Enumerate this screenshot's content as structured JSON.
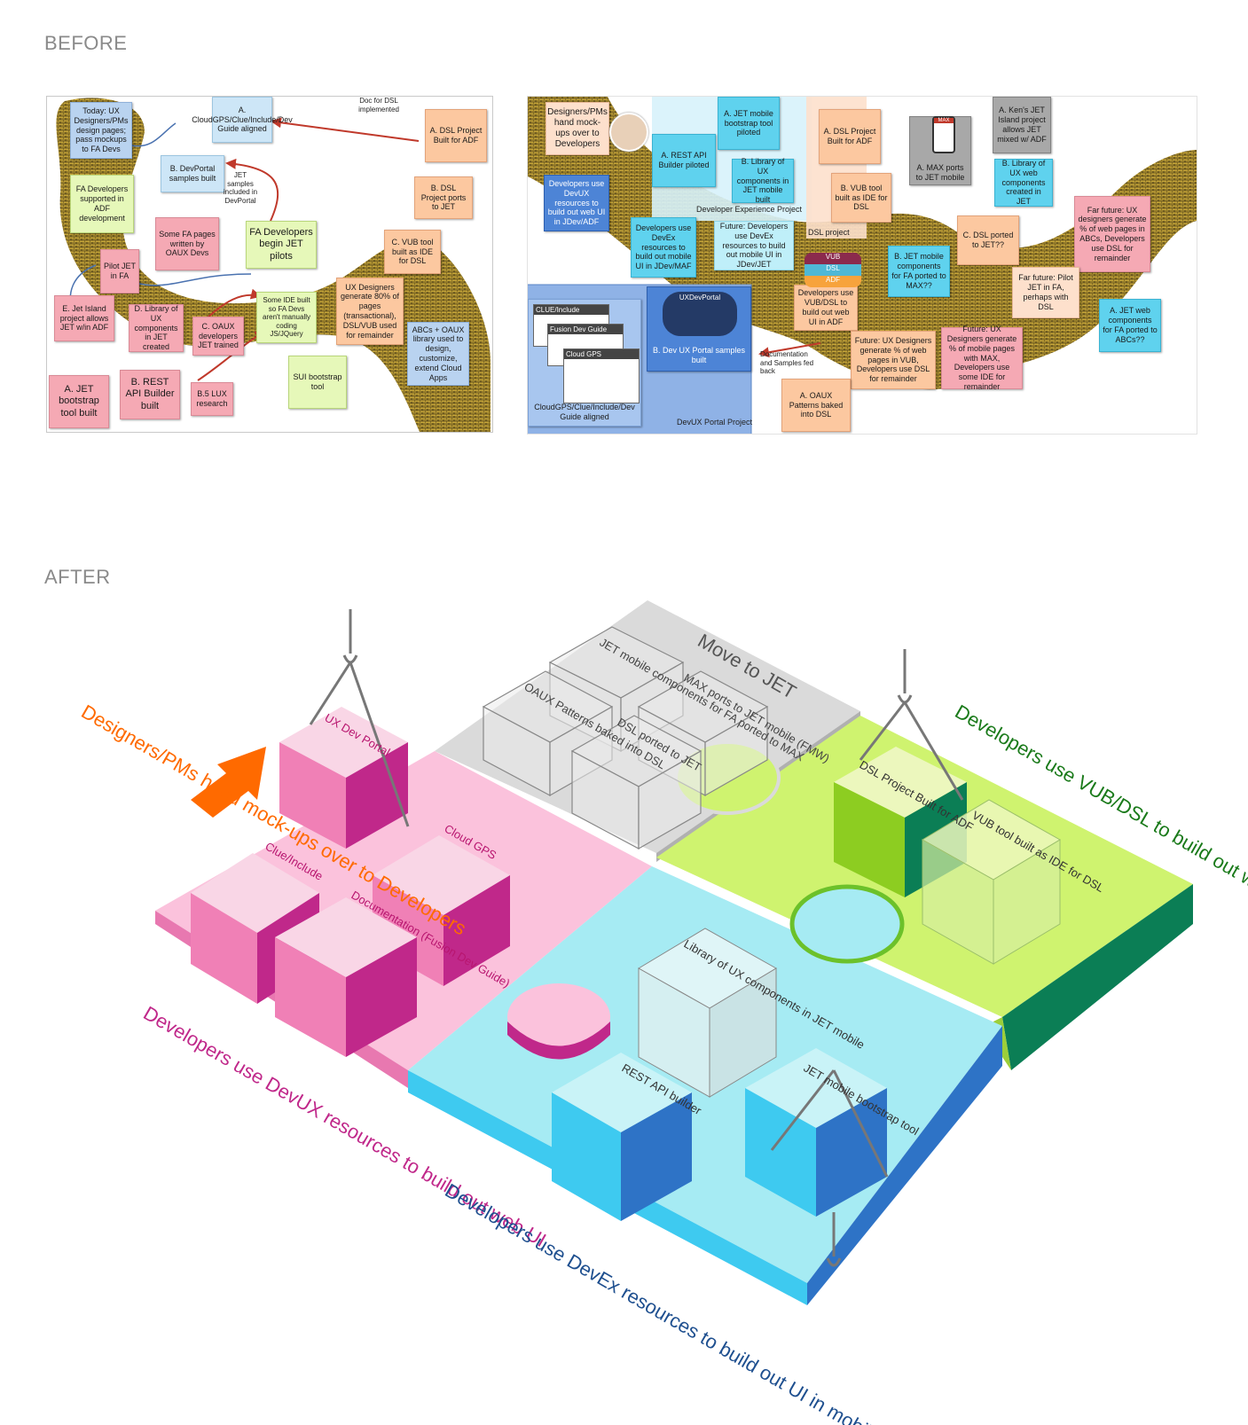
{
  "labels": {
    "before": "BEFORE",
    "after": "AFTER"
  },
  "before_left": {
    "notes": [
      "Today: UX Designers/PMs design pages; pass mockups to FA Devs",
      "A. CloudGPS/Clue/Include/Dev Guide aligned",
      "A. DSL Project Built for ADF",
      "B. DevPortal samples built",
      "FA Developers supported in ADF development",
      "B. DSL Project ports to JET",
      "Some FA pages written by OAUX Devs",
      "FA Developers begin JET pilots",
      "C. VUB tool built as IDE for DSL",
      "Pilot JET in FA",
      "UX Designers generate 80% of pages (transactional), DSL/VUB used for remainder",
      "E. Jet Island project allows JET w/in ADF",
      "D. Library of UX components in JET created",
      "C. OAUX developers JET trained",
      "Some IDE built so FA Devs aren't manually coding JS/JQuery",
      "ABCs + OAUX library used to design, customize, extend Cloud Apps",
      "A. JET bootstrap tool built",
      "B. REST API Builder built",
      "B.5 LUX research",
      "SUI bootstrap tool"
    ],
    "annotations": [
      "Doc for DSL implemented",
      "JET samples included in DevPortal"
    ]
  },
  "before_right": {
    "notes": [
      "Designers/PMs hand mock-ups over to Developers",
      "A. REST API Builder piloted",
      "A. JET mobile bootstrap tool piloted",
      "B. Library of UX components in JET mobile built",
      "Developers use DevUX resources to build out web UI in JDev/ADF",
      "Developers use DevEx resources to build out mobile UI in JDev/MAF",
      "Future: Developers use DevEx resources to build out mobile UI in JDev/JET",
      "A. DSL Project Built for ADF",
      "B. VUB tool built as IDE for DSL",
      "A. MAX ports to JET mobile",
      "A. Ken's JET Island project allows JET mixed w/ ADF",
      "B. Library of UX web components created in JET",
      "Far future: UX designers generate % of web pages in ABCs, Developers use DSL for remainder",
      "C. DSL ported to JET??",
      "B. JET mobile components for FA ported to MAX??",
      "Developers use VUB/DSL to build out web UI in ADF",
      "Far future: Pilot JET in FA, perhaps with DSL",
      "A. JET web components for FA ported to ABCs??",
      "Future: UX Designers generate % of web pages in VUB, Developers use DSL for remainder",
      "Future: UX Designers generate % of mobile pages with MAX, Developers use some IDE for remainder",
      "A. OAUX Patterns baked into DSL",
      "B. Dev UX Portal samples built",
      "A. CloudGPS/Clue/Include/Dev Guide aligned"
    ],
    "projects": [
      "Developer Experience Project",
      "DSL project",
      "DevUX Portal Project"
    ],
    "annotations": [
      "Documentation and Samples fed back"
    ],
    "screens": [
      "CLUE/Include",
      "Fusion Dev Guide",
      "Cloud GPS",
      "UXDevPortal"
    ],
    "cloud_labels": [
      "VUB",
      "DSL",
      "ADF"
    ],
    "phone_label": "MAX"
  },
  "after": {
    "title_top": "Move to JET",
    "pink_cubes": [
      "UX Dev Portal",
      "Clue/Include",
      "Cloud GPS",
      "Documentation (Fusion Dev Guide)"
    ],
    "gray_cubes": [
      "JET mobile components for FA ported to MAX",
      "MAX ports to JET mobile (FMW)",
      "OAUX Patterns baked into DSL",
      "DSL ported to JET"
    ],
    "green_cubes": [
      "DSL Project Built for ADF",
      "VUB tool built as IDE for DSL"
    ],
    "cyan_cubes": [
      "Library of UX components in JET mobile",
      "REST API builder",
      "JET mobile bootstrap tool"
    ],
    "text_designers": "Designers/PMs hand mock-ups over to Developers",
    "text_green": "Developers use VUB/DSL to build out web UI",
    "text_pink": "Developers use DevUX resources to build out web UI",
    "text_blue": "Developers use DevEx resources to build out UI in mobile/web",
    "colors": {
      "pink": "#f9c1d9",
      "magenta": "#c0288a",
      "green": "#cdf46e",
      "darkgreen": "#0e7a50",
      "cyan": "#a9ebf1",
      "blue": "#2e6fc0",
      "gray": "#d9d9d9",
      "orange": "#ff6a00"
    }
  }
}
